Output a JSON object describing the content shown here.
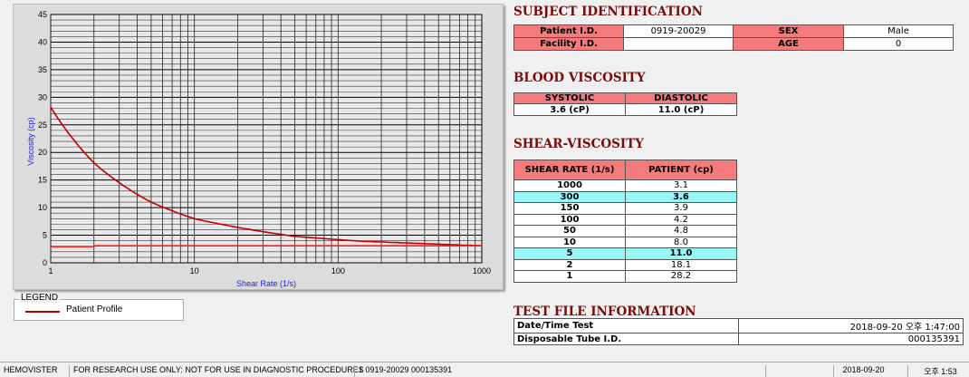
{
  "chart_data": {
    "type": "line",
    "xlabel": "Shear Rate (1/s)",
    "ylabel": "Viscosity (cp)",
    "xscale": "log",
    "xlim": [
      1,
      1000
    ],
    "ylim": [
      0,
      45
    ],
    "xticks": [
      "1",
      "10",
      "100",
      "1000"
    ],
    "yticks": [
      "0",
      "5",
      "10",
      "15",
      "20",
      "25",
      "30",
      "35",
      "40",
      "45"
    ],
    "grid": true,
    "series": [
      {
        "name": "Patient Profile",
        "color": "#c00000",
        "x": [
          1,
          2,
          5,
          10,
          50,
          100,
          150,
          300,
          1000
        ],
        "y": [
          28.2,
          18.1,
          11.0,
          8.0,
          4.8,
          4.2,
          3.9,
          3.6,
          3.1
        ]
      },
      {
        "color": "#ff2020",
        "x": [
          1,
          2,
          2,
          1000
        ],
        "y": [
          2.9,
          2.9,
          3.1,
          3.1
        ]
      }
    ],
    "legend": {
      "title": "LEGEND",
      "position": "below",
      "entries": [
        "Patient Profile"
      ]
    }
  },
  "subject": {
    "title": "SUBJECT IDENTIFICATION",
    "patient_id_label": "Patient I.D.",
    "patient_id": "0919-20029",
    "sex_label": "SEX",
    "sex": "Male",
    "facility_label": "Facility I.D.",
    "facility": "",
    "age_label": "AGE",
    "age": "0"
  },
  "blood": {
    "title": "BLOOD VISCOSITY",
    "systolic_label": "SYSTOLIC",
    "diastolic_label": "DIASTOLIC",
    "systolic": "3.6 (cP)",
    "diastolic": "11.0 (cP)"
  },
  "shear": {
    "title": "SHEAR-VISCOSITY",
    "col1": "SHEAR RATE (1/s)",
    "col2": "PATIENT (cp)",
    "rows": [
      [
        "1000",
        "3.1"
      ],
      [
        "300",
        "3.6"
      ],
      [
        "150",
        "3.9"
      ],
      [
        "100",
        "4.2"
      ],
      [
        "50",
        "4.8"
      ],
      [
        "10",
        "8.0"
      ],
      [
        "5",
        "11.0"
      ],
      [
        "2",
        "18.1"
      ],
      [
        "1",
        "28.2"
      ]
    ],
    "highlight_color": "#99f6f6"
  },
  "testfile": {
    "title": "TEST FILE INFORMATION",
    "date_label": "Date/Time Test",
    "date": "2018-09-20  오후 1:47:00",
    "tube_label": "Disposable Tube I.D.",
    "tube": "000135391"
  },
  "status": {
    "app": "HEMOVISTER",
    "notice": "FOR RESEARCH USE ONLY: NOT FOR USE IN DIAGNOSTIC PROCEDURES",
    "record": "1  0919-20029  000135391",
    "date": "2018-09-20",
    "time": "오후 1:53"
  }
}
